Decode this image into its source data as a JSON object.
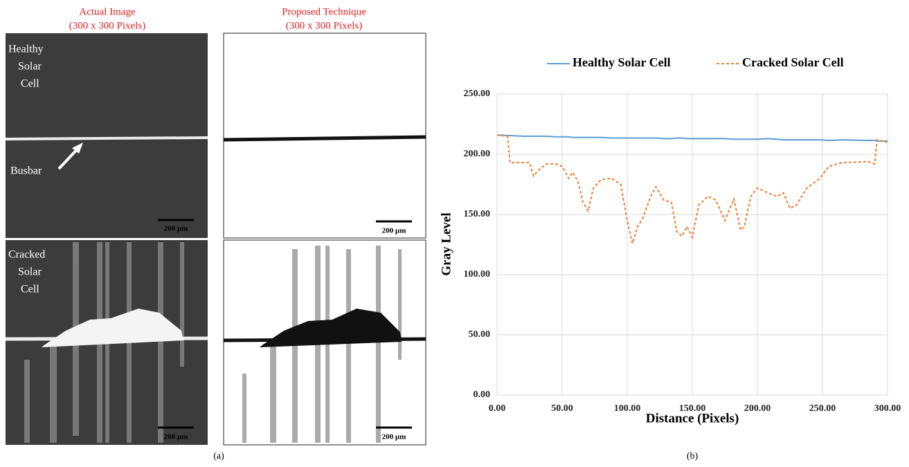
{
  "figure": {
    "left_titles": [
      [
        "Actual Image",
        "(300 x 300 Pixels)"
      ],
      [
        "Proposed Technique",
        "(300 x 300 Pixels)"
      ]
    ],
    "healthy_label": [
      "Healthy",
      "Solar",
      "Cell"
    ],
    "cracked_label": [
      "Cracked",
      "Solar",
      "Cell"
    ],
    "busbar_label": "Busbar",
    "scale_labels": [
      "200 µm",
      "200 µm",
      "200 µm",
      "200 µm"
    ],
    "captions": [
      "(a)",
      "(b)"
    ]
  },
  "chart_data": {
    "type": "line",
    "xlabel": "Distance (Pixels)",
    "ylabel": "Gray Level",
    "x": [
      0,
      8,
      10,
      20,
      25,
      28,
      32,
      38,
      45,
      50,
      55,
      58,
      62,
      66,
      70,
      74,
      80,
      88,
      95,
      100,
      104,
      108,
      112,
      118,
      122,
      128,
      134,
      138,
      142,
      146,
      150,
      155,
      162,
      168,
      175,
      182,
      187,
      190,
      195,
      200,
      208,
      215,
      220,
      225,
      230,
      238,
      248,
      255,
      265,
      285,
      290,
      292,
      300
    ],
    "series": [
      {
        "name": "Healthy Solar Cell",
        "color": "#5b9bd5",
        "dash": false,
        "values": [
          216,
          215.5,
          215.5,
          215,
          215,
          215,
          215,
          215,
          214.5,
          214.5,
          214.5,
          214,
          214,
          214,
          214,
          214,
          214,
          213.5,
          213.5,
          213.5,
          213.5,
          213.5,
          213.5,
          213.5,
          213.5,
          213,
          213,
          213.5,
          213.5,
          213,
          213,
          213,
          213,
          213,
          213,
          212.5,
          212.5,
          212.5,
          212.5,
          212.5,
          213,
          212.5,
          212,
          212,
          212,
          212,
          212,
          211.5,
          212,
          211.5,
          211.5,
          211,
          211
        ]
      },
      {
        "name": "Cracked Solar Cell",
        "color": "#ed7d31",
        "dash": true,
        "values": [
          216,
          215,
          193,
          193,
          193,
          182,
          187,
          192,
          192,
          190,
          180,
          185,
          178,
          160,
          153,
          172,
          179,
          180,
          175,
          145,
          126,
          140,
          147,
          165,
          173,
          162,
          160,
          136,
          132,
          140,
          131,
          158,
          165,
          162,
          145,
          163,
          137,
          140,
          165,
          172,
          168,
          165,
          168,
          155,
          158,
          172,
          180,
          190,
          193,
          194,
          192,
          212,
          210
        ]
      }
    ],
    "xlim": [
      0,
      300
    ],
    "ylim": [
      0,
      250
    ],
    "xticks": [
      {
        "value": 0,
        "label": "0.00"
      },
      {
        "value": 50,
        "label": "50.00"
      },
      {
        "value": 100,
        "label": "100.00"
      },
      {
        "value": 150,
        "label": "150.00"
      },
      {
        "value": 200,
        "label": "200.00"
      },
      {
        "value": 250,
        "label": "250.00"
      },
      {
        "value": 300,
        "label": "300.00"
      }
    ],
    "yticks": [
      {
        "value": 0,
        "label": "0.00"
      },
      {
        "value": 50,
        "label": "50.00"
      },
      {
        "value": 100,
        "label": "100.00"
      },
      {
        "value": 150,
        "label": "150.00"
      },
      {
        "value": 200,
        "label": "200.00"
      },
      {
        "value": 250,
        "label": "250.00"
      }
    ],
    "grid": true,
    "legend": "top"
  }
}
